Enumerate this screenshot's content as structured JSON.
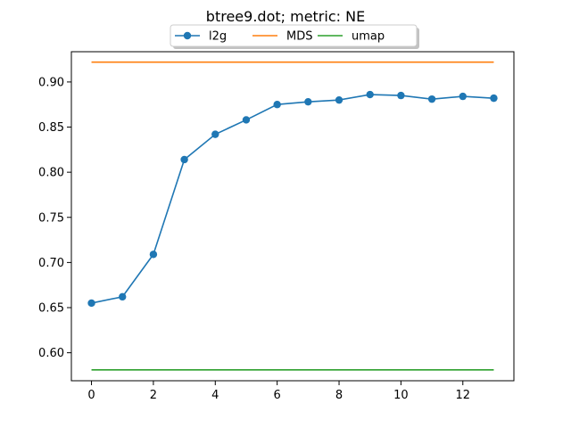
{
  "chart_data": {
    "type": "line",
    "title": "btree9.dot; metric: NE",
    "xlabel": "",
    "ylabel": "",
    "xlim": [
      -0.65,
      13.65
    ],
    "ylim": [
      0.569,
      0.9335
    ],
    "xticks": [
      0,
      2,
      4,
      6,
      8,
      10,
      12
    ],
    "xtick_labels": [
      "0",
      "2",
      "4",
      "6",
      "8",
      "10",
      "12"
    ],
    "yticks": [
      0.6,
      0.65,
      0.7,
      0.75,
      0.8,
      0.85,
      0.9
    ],
    "ytick_labels": [
      "0.60",
      "0.65",
      "0.70",
      "0.75",
      "0.80",
      "0.85",
      "0.90"
    ],
    "grid": false,
    "legend_position": "top-center",
    "series": [
      {
        "name": "l2g",
        "color": "#1f77b4",
        "marker": "circle",
        "x": [
          0,
          1,
          2,
          3,
          4,
          5,
          6,
          7,
          8,
          9,
          10,
          11,
          12,
          13
        ],
        "y": [
          0.655,
          0.662,
          0.709,
          0.814,
          0.842,
          0.858,
          0.875,
          0.878,
          0.88,
          0.886,
          0.885,
          0.881,
          0.884,
          0.882
        ]
      },
      {
        "name": "MDS",
        "color": "#ff7f0e",
        "marker": "none",
        "x": [
          0,
          13
        ],
        "y": [
          0.922,
          0.922
        ]
      },
      {
        "name": "umap",
        "color": "#2ca02c",
        "marker": "none",
        "x": [
          0,
          13
        ],
        "y": [
          0.581,
          0.581
        ]
      }
    ]
  }
}
